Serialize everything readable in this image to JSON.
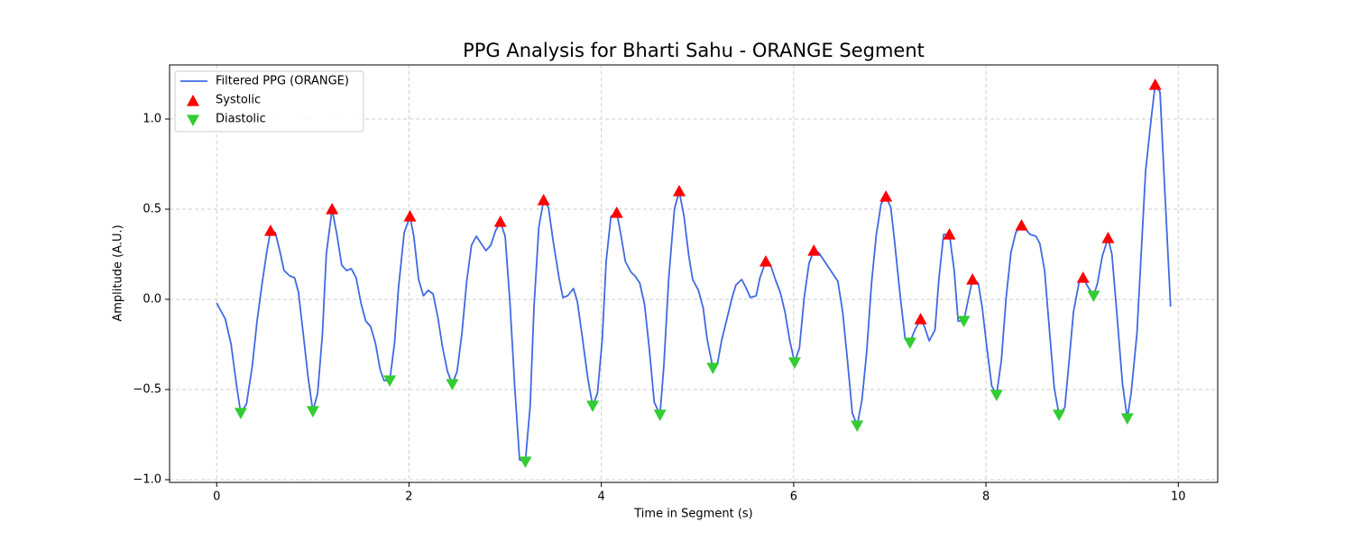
{
  "chart_data": {
    "type": "line",
    "title": "PPG Analysis for Bharti Sahu - ORANGE Segment",
    "xlabel": "Time in Segment (s)",
    "ylabel": "Amplitude (A.U.)",
    "xlim": [
      -0.49,
      10.41
    ],
    "ylim": [
      -1.015,
      1.3
    ],
    "xticks": [
      0,
      2,
      4,
      6,
      8,
      10
    ],
    "yticks": [
      {
        "value": -1,
        "label": "−1.0"
      },
      {
        "value": -0.5,
        "label": "−0.5"
      },
      {
        "value": 0,
        "label": "0.0"
      },
      {
        "value": 0.5,
        "label": "0.5"
      },
      {
        "value": 1,
        "label": "1.0"
      }
    ],
    "grid": true,
    "legend": "upper left",
    "series": [
      {
        "name": "Filtered PPG (ORANGE)",
        "type": "line",
        "color": "#4169e1",
        "x": [
          0,
          0.09,
          0.15,
          0.21,
          0.25,
          0.31,
          0.37,
          0.42,
          0.47,
          0.52,
          0.56,
          0.61,
          0.66,
          0.7,
          0.76,
          0.81,
          0.85,
          0.9,
          0.95,
          1.0,
          1.05,
          1.1,
          1.14,
          1.2,
          1.25,
          1.3,
          1.35,
          1.4,
          1.45,
          1.5,
          1.55,
          1.6,
          1.65,
          1.7,
          1.74,
          1.8,
          1.85,
          1.89,
          1.95,
          2.01,
          2.05,
          2.1,
          2.15,
          2.2,
          2.25,
          2.3,
          2.35,
          2.4,
          2.45,
          2.5,
          2.55,
          2.6,
          2.65,
          2.7,
          2.75,
          2.8,
          2.85,
          2.9,
          2.95,
          3.0,
          3.05,
          3.1,
          3.15,
          3.21,
          3.26,
          3.3,
          3.35,
          3.4,
          3.45,
          3.5,
          3.56,
          3.6,
          3.65,
          3.71,
          3.75,
          3.8,
          3.86,
          3.91,
          3.96,
          4.01,
          4.05,
          4.1,
          4.16,
          4.2,
          4.25,
          4.31,
          4.35,
          4.4,
          4.45,
          4.5,
          4.55,
          4.61,
          4.65,
          4.7,
          4.76,
          4.81,
          4.86,
          4.91,
          4.95,
          5.01,
          5.06,
          5.1,
          5.16,
          5.21,
          5.25,
          5.31,
          5.36,
          5.4,
          5.46,
          5.5,
          5.55,
          5.61,
          5.65,
          5.71,
          5.76,
          5.81,
          5.86,
          5.91,
          5.96,
          6.01,
          6.06,
          6.11,
          6.16,
          6.21,
          6.26,
          6.31,
          6.36,
          6.41,
          6.46,
          6.51,
          6.56,
          6.61,
          6.66,
          6.71,
          6.76,
          6.81,
          6.86,
          6.91,
          6.96,
          7.01,
          7.05,
          7.11,
          7.16,
          7.21,
          7.26,
          7.32,
          7.36,
          7.41,
          7.47,
          7.51,
          7.56,
          7.62,
          7.67,
          7.71,
          7.77,
          7.82,
          7.86,
          7.92,
          7.96,
          8.01,
          8.06,
          8.11,
          8.16,
          8.21,
          8.26,
          8.31,
          8.37,
          8.41,
          8.46,
          8.52,
          8.56,
          8.61,
          8.66,
          8.71,
          8.76,
          8.82,
          8.86,
          8.91,
          8.97,
          9.01,
          9.06,
          9.12,
          9.16,
          9.21,
          9.27,
          9.31,
          9.36,
          9.42,
          9.47,
          9.51,
          9.57,
          9.61,
          9.66,
          9.72,
          9.76,
          9.81,
          9.85,
          9.92
        ],
        "values": [
          -0.02,
          -0.11,
          -0.25,
          -0.49,
          -0.63,
          -0.58,
          -0.37,
          -0.12,
          0.08,
          0.26,
          0.38,
          0.37,
          0.26,
          0.16,
          0.13,
          0.12,
          0.04,
          -0.19,
          -0.43,
          -0.62,
          -0.52,
          -0.19,
          0.25,
          0.5,
          0.36,
          0.19,
          0.16,
          0.17,
          0.12,
          -0.02,
          -0.12,
          -0.15,
          -0.24,
          -0.39,
          -0.45,
          -0.45,
          -0.24,
          0.06,
          0.37,
          0.46,
          0.35,
          0.11,
          0.02,
          0.05,
          0.03,
          -0.1,
          -0.27,
          -0.4,
          -0.47,
          -0.4,
          -0.19,
          0.1,
          0.3,
          0.35,
          0.31,
          0.27,
          0.3,
          0.38,
          0.43,
          0.35,
          -0.02,
          -0.49,
          -0.89,
          -0.9,
          -0.59,
          -0.04,
          0.4,
          0.55,
          0.51,
          0.32,
          0.12,
          0.01,
          0.02,
          0.06,
          -0.01,
          -0.2,
          -0.44,
          -0.59,
          -0.52,
          -0.22,
          0.21,
          0.46,
          0.48,
          0.37,
          0.21,
          0.15,
          0.13,
          0.09,
          -0.03,
          -0.28,
          -0.57,
          -0.64,
          -0.37,
          0.11,
          0.5,
          0.6,
          0.46,
          0.24,
          0.11,
          0.05,
          -0.05,
          -0.22,
          -0.38,
          -0.35,
          -0.23,
          -0.1,
          0.01,
          0.08,
          0.11,
          0.07,
          0.01,
          0.02,
          0.12,
          0.21,
          0.19,
          0.11,
          0.04,
          -0.07,
          -0.23,
          -0.35,
          -0.27,
          0.01,
          0.2,
          0.27,
          0.26,
          0.22,
          0.18,
          0.14,
          0.1,
          -0.07,
          -0.34,
          -0.63,
          -0.7,
          -0.56,
          -0.29,
          0.09,
          0.36,
          0.53,
          0.57,
          0.51,
          0.32,
          0.01,
          -0.22,
          -0.24,
          -0.17,
          -0.11,
          -0.15,
          -0.23,
          -0.17,
          0.11,
          0.36,
          0.36,
          0.16,
          -0.12,
          -0.12,
          0.01,
          0.11,
          0.09,
          -0.04,
          -0.27,
          -0.48,
          -0.53,
          -0.34,
          0.01,
          0.26,
          0.37,
          0.41,
          0.39,
          0.36,
          0.35,
          0.31,
          0.16,
          -0.17,
          -0.49,
          -0.64,
          -0.6,
          -0.37,
          -0.07,
          0.1,
          0.12,
          0.07,
          0.02,
          0.09,
          0.24,
          0.34,
          0.25,
          -0.07,
          -0.47,
          -0.66,
          -0.52,
          -0.19,
          0.21,
          0.71,
          1.01,
          1.19,
          1.15,
          0.71,
          -0.04
        ]
      },
      {
        "name": "Systolic",
        "type": "scatter",
        "marker": "triangle-up",
        "color": "#ff0000",
        "x": [
          0.56,
          1.2,
          2.01,
          2.95,
          3.4,
          4.16,
          4.81,
          5.71,
          6.21,
          6.96,
          7.32,
          7.62,
          7.86,
          8.37,
          9.01,
          9.27,
          9.76
        ],
        "values": [
          0.38,
          0.5,
          0.46,
          0.43,
          0.55,
          0.48,
          0.6,
          0.21,
          0.27,
          0.57,
          -0.11,
          0.36,
          0.11,
          0.41,
          0.12,
          0.34,
          1.19
        ]
      },
      {
        "name": "Diastolic",
        "type": "scatter",
        "marker": "triangle-down",
        "color": "#32cd32",
        "x": [
          0.25,
          1.0,
          1.8,
          2.45,
          3.21,
          3.91,
          4.61,
          5.16,
          6.01,
          6.66,
          7.21,
          7.77,
          8.11,
          8.76,
          9.12,
          9.47
        ],
        "values": [
          -0.63,
          -0.62,
          -0.45,
          -0.47,
          -0.9,
          -0.59,
          -0.64,
          -0.38,
          -0.35,
          -0.7,
          -0.24,
          -0.12,
          -0.53,
          -0.64,
          0.02,
          -0.66
        ]
      }
    ]
  }
}
